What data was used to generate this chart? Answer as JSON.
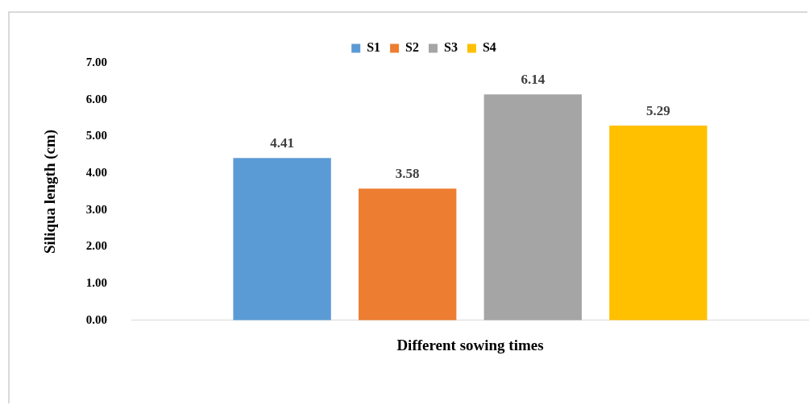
{
  "chart_data": {
    "type": "bar",
    "categories": [
      null
    ],
    "series": [
      {
        "name": "S1",
        "color": "#5b9bd5",
        "values": [
          4.41
        ]
      },
      {
        "name": "S2",
        "color": "#ed7d31",
        "values": [
          3.58
        ]
      },
      {
        "name": "S3",
        "color": "#a5a5a5",
        "values": [
          6.14
        ]
      },
      {
        "name": "S4",
        "color": "#ffc000",
        "values": [
          5.29
        ]
      }
    ],
    "xlabel": "Different sowing times",
    "ylabel": "Siliqua length (cm)",
    "ylim": [
      0,
      7
    ],
    "yticks": [
      {
        "value": 0,
        "label": "0.00"
      },
      {
        "value": 1,
        "label": "1.00"
      },
      {
        "value": 2,
        "label": "2.00"
      },
      {
        "value": 3,
        "label": "3.00"
      },
      {
        "value": 4,
        "label": "4.00"
      },
      {
        "value": 5,
        "label": "5.00"
      },
      {
        "value": 6,
        "label": "6.00"
      },
      {
        "value": 7,
        "label": "7.00"
      }
    ],
    "legend": "top",
    "data_labels": true,
    "grid": false
  }
}
